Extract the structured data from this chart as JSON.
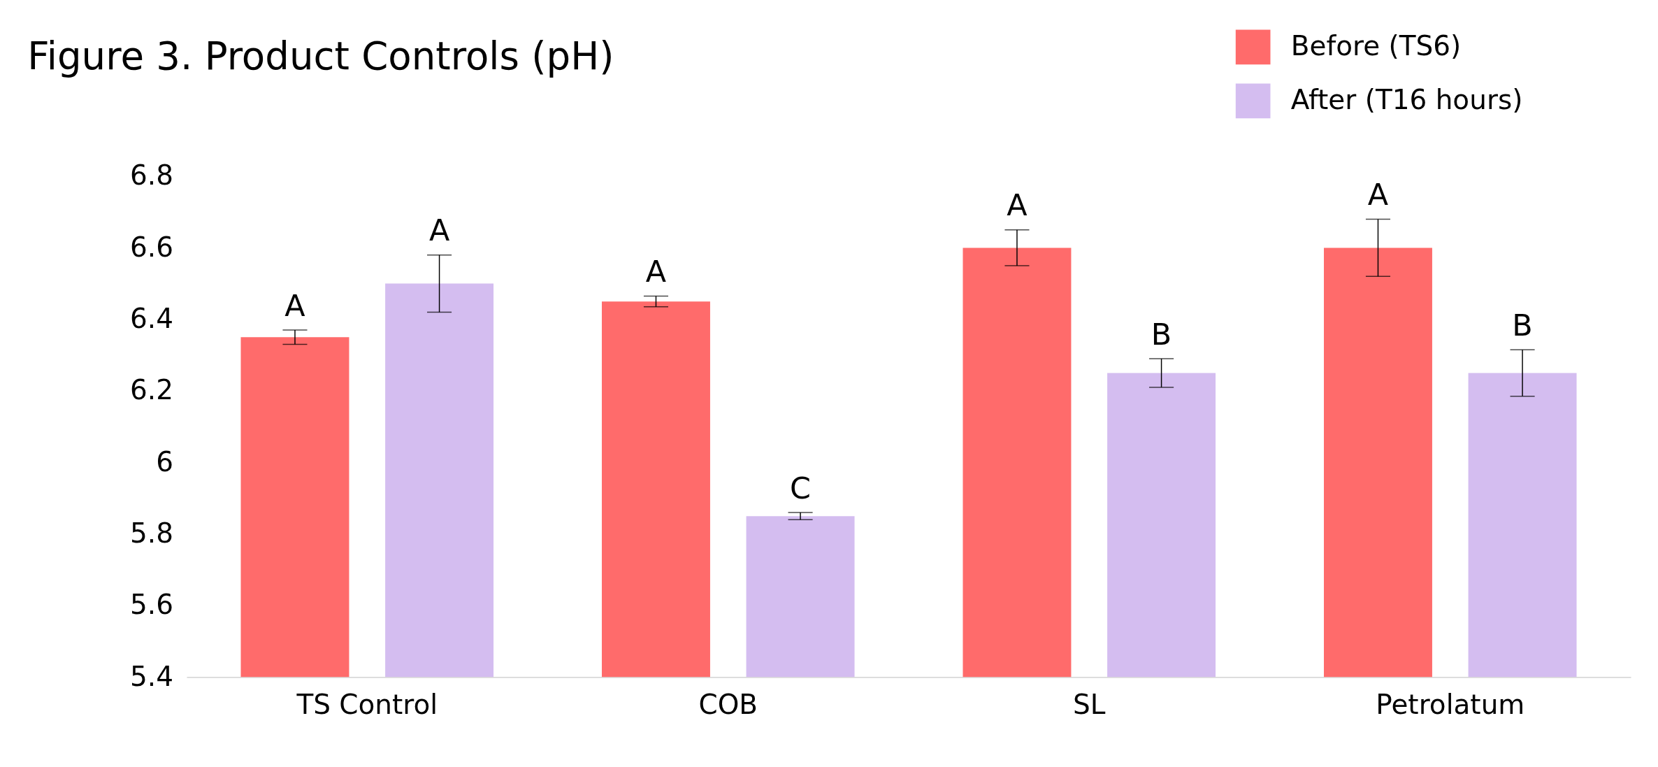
{
  "chart_data": {
    "type": "bar",
    "title": "Figure 3. Product Controls (pH)",
    "categories": [
      "TS Control",
      "COB",
      "SL",
      "Petrolatum"
    ],
    "series": [
      {
        "name": "Before (TS6)",
        "color": "#ff6b6b",
        "values": [
          6.35,
          6.45,
          6.6,
          6.6
        ],
        "errors": [
          0.02,
          0.015,
          0.05,
          0.08
        ]
      },
      {
        "name": "After (T16 hours)",
        "color": "#d4bdf0",
        "values": [
          6.5,
          5.85,
          6.25,
          6.25
        ],
        "errors": [
          0.08,
          0.01,
          0.04,
          0.065
        ]
      }
    ],
    "ylim": [
      5.4,
      6.8
    ],
    "yticks": [
      5.4,
      5.6,
      5.8,
      6,
      6.2,
      6.4,
      6.6,
      6.8
    ],
    "grid": false,
    "legend": "top right",
    "annotations": [
      "A",
      "A",
      "A",
      "C",
      "A",
      "B",
      "A",
      "B"
    ]
  }
}
